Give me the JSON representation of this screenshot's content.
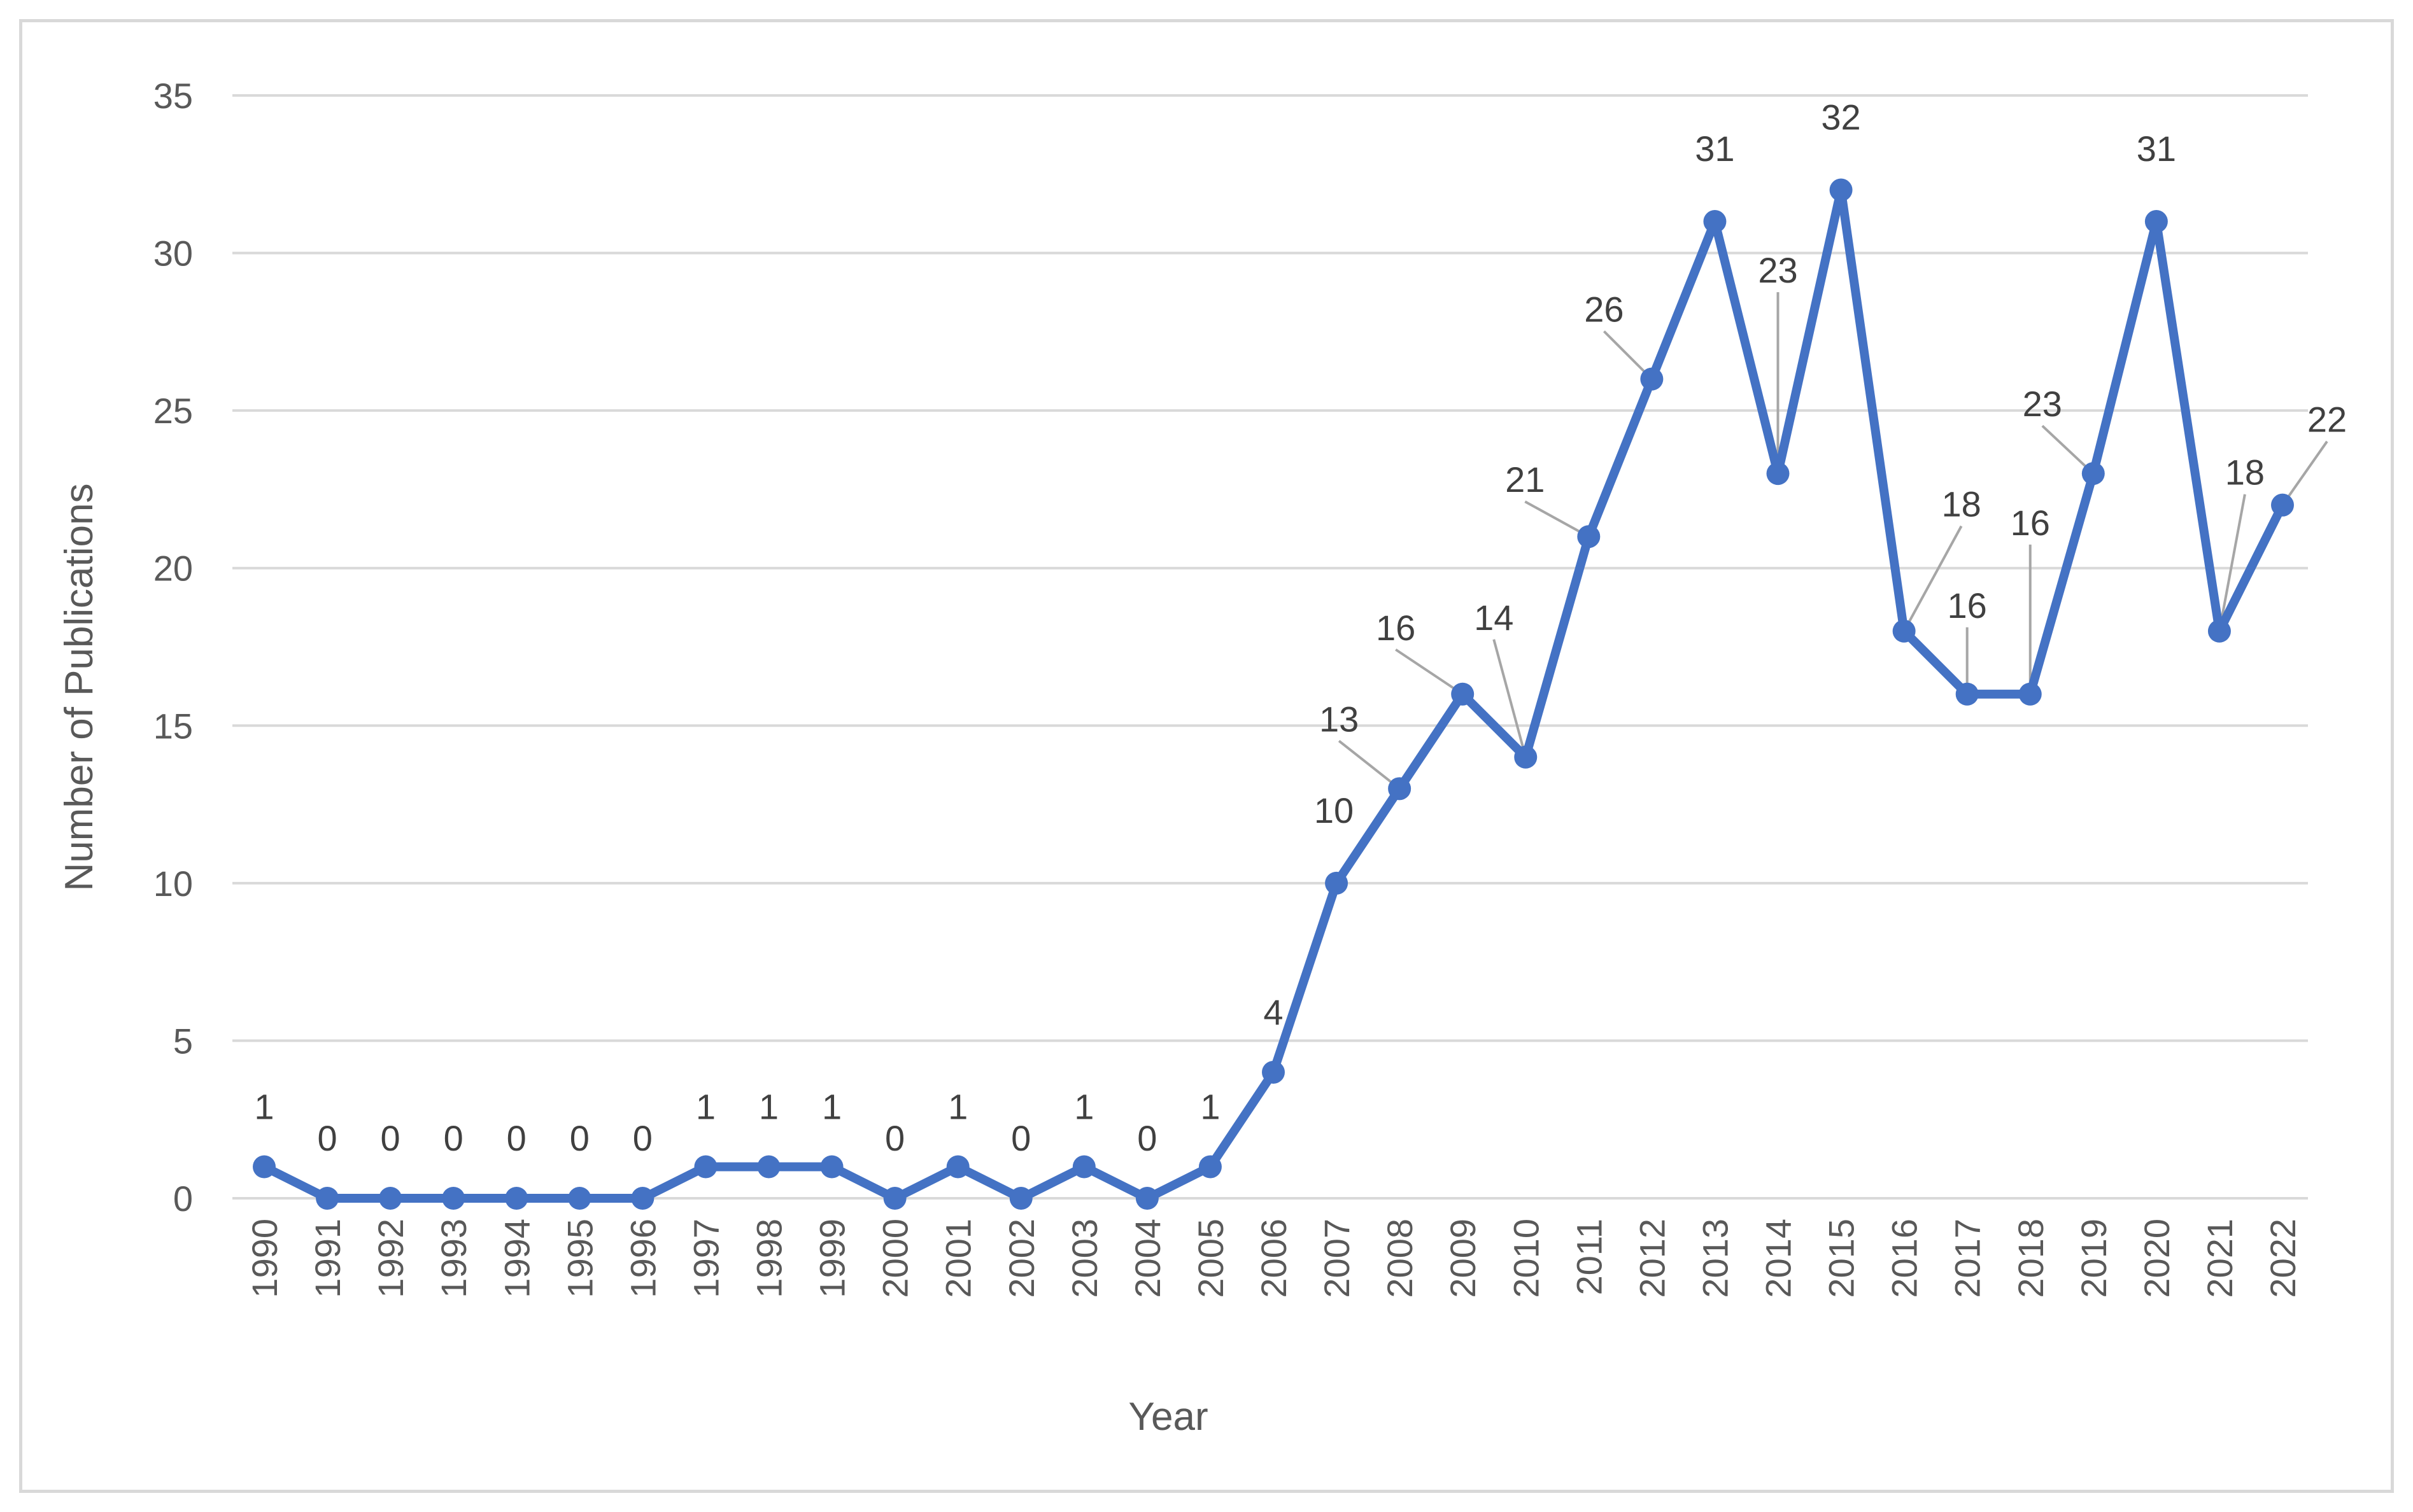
{
  "chart_data": {
    "type": "line",
    "title": "",
    "xlabel": "Year",
    "ylabel": "Number of Publications",
    "ylim": [
      0,
      35
    ],
    "yticks": [
      0,
      5,
      10,
      15,
      20,
      25,
      30,
      35
    ],
    "grid": true,
    "legend": "none",
    "categories": [
      "1990",
      "1991",
      "1992",
      "1993",
      "1994",
      "1995",
      "1996",
      "1997",
      "1998",
      "1999",
      "2000",
      "2001",
      "2002",
      "2003",
      "2004",
      "2005",
      "2006",
      "2007",
      "2008",
      "2009",
      "2010",
      "2011",
      "2012",
      "2013",
      "2014",
      "2015",
      "2016",
      "2017",
      "2018",
      "2019",
      "2020",
      "2021",
      "2022"
    ],
    "series": [
      {
        "values": [
          1,
          0,
          0,
          0,
          0,
          0,
          0,
          1,
          1,
          1,
          0,
          1,
          0,
          1,
          0,
          1,
          4,
          10,
          13,
          16,
          14,
          21,
          26,
          31,
          23,
          32,
          18,
          16,
          16,
          23,
          31,
          18,
          22
        ],
        "data_labels": [
          "1",
          "0",
          "0",
          "0",
          "0",
          "0",
          "0",
          "1",
          "1",
          "1",
          "0",
          "1",
          "0",
          "1",
          "0",
          "1",
          "4",
          "10",
          "13",
          "16",
          "14",
          "21",
          "26",
          "31",
          "23",
          "32",
          "18",
          "16",
          "16",
          "23",
          "31",
          "18",
          "22"
        ],
        "color": "#4472c4"
      }
    ],
    "colors": {
      "line": "#4472c4",
      "grid": "#d9d9d9",
      "axis_text": "#595959",
      "label_text": "#404040",
      "leader": "#a6a6a6"
    }
  }
}
